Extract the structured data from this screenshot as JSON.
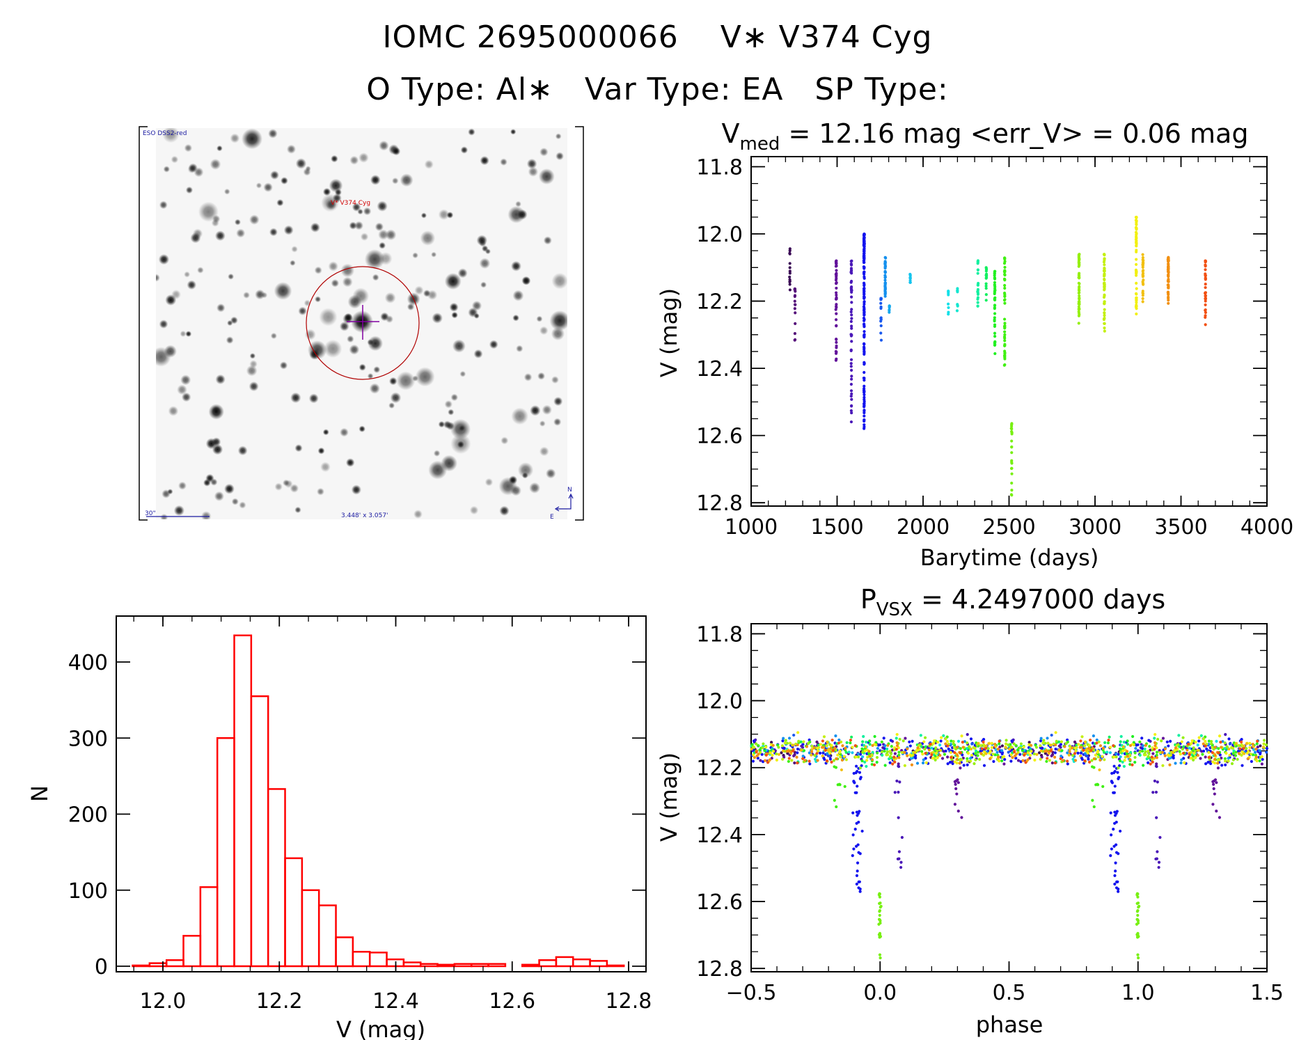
{
  "header": {
    "line1": "IOMC 2695000066    V∗ V374 Cyg",
    "line2": "O Type: Al∗   Var Type: EA   SP Type:"
  },
  "finder": {
    "survey_label": "ESO DSS2-red",
    "target_label": "V* V374 Cyg",
    "scale_label": "30\"",
    "fov_label": "3.448' x 3.057'",
    "north_label": "N",
    "east_label": "E"
  },
  "chart_data": [
    {
      "id": "lightcurve",
      "type": "scatter",
      "title_main": "V",
      "title_sub": "med",
      "title_rest": " = 12.16 mag <err_V> = 0.06 mag",
      "xlabel": "Barytime (days)",
      "ylabel": "V (mag)",
      "xlim": [
        1000,
        4000
      ],
      "ylim": [
        11.8,
        12.8
      ],
      "y_inverted": true,
      "xticks": [
        "1000",
        "1500",
        "2000",
        "2500",
        "3000",
        "3500",
        "4000"
      ],
      "yticks": [
        "11.8",
        "12.0",
        "12.2",
        "12.4",
        "12.6",
        "12.8"
      ],
      "seasons": [
        {
          "t": 1225,
          "vmin": 12.04,
          "vmax": 12.2,
          "n": 14,
          "color": "#3a0a55"
        },
        {
          "t": 1255,
          "vmin": 12.16,
          "vmax": 12.32,
          "n": 16,
          "color": "#55107a"
        },
        {
          "t": 1495,
          "vmin": 12.08,
          "vmax": 12.38,
          "n": 45,
          "color": "#62129a"
        },
        {
          "t": 1583,
          "vmin": 12.08,
          "vmax": 12.56,
          "n": 50,
          "color": "#4a18b8"
        },
        {
          "t": 1657,
          "vmin": 12.0,
          "vmax": 12.58,
          "n": 160,
          "color": "#1414ee"
        },
        {
          "t": 1755,
          "vmin": 12.19,
          "vmax": 12.32,
          "n": 14,
          "color": "#1858ee"
        },
        {
          "t": 1780,
          "vmin": 12.07,
          "vmax": 12.2,
          "n": 40,
          "color": "#1490ee"
        },
        {
          "t": 1804,
          "vmin": 12.21,
          "vmax": 12.27,
          "n": 8,
          "color": "#14a8ee"
        },
        {
          "t": 1926,
          "vmin": 12.12,
          "vmax": 12.18,
          "n": 8,
          "color": "#14c4ee"
        },
        {
          "t": 2147,
          "vmin": 12.17,
          "vmax": 12.25,
          "n": 8,
          "color": "#12e0e8"
        },
        {
          "t": 2200,
          "vmin": 12.16,
          "vmax": 12.25,
          "n": 8,
          "color": "#12e6d0"
        },
        {
          "t": 2319,
          "vmin": 12.07,
          "vmax": 12.27,
          "n": 20,
          "color": "#12f0a0"
        },
        {
          "t": 2368,
          "vmin": 12.1,
          "vmax": 12.22,
          "n": 18,
          "color": "#12f060"
        },
        {
          "t": 2417,
          "vmin": 12.11,
          "vmax": 12.36,
          "n": 40,
          "color": "#22f022"
        },
        {
          "t": 2475,
          "vmin": 12.07,
          "vmax": 12.4,
          "n": 50,
          "color": "#40f012"
        },
        {
          "t": 2515,
          "vmin": 12.56,
          "vmax": 12.78,
          "n": 25,
          "color": "#78f012",
          "dip": 0.0
        },
        {
          "t": 2907,
          "vmin": 12.06,
          "vmax": 12.27,
          "n": 60,
          "color": "#96f012"
        },
        {
          "t": 3054,
          "vmin": 12.06,
          "vmax": 12.29,
          "n": 55,
          "color": "#c4f012"
        },
        {
          "t": 3240,
          "vmin": 11.95,
          "vmax": 12.24,
          "n": 60,
          "color": "#f2f012"
        },
        {
          "t": 3279,
          "vmin": 12.06,
          "vmax": 12.21,
          "n": 30,
          "color": "#f2c012"
        },
        {
          "t": 3426,
          "vmin": 12.07,
          "vmax": 12.21,
          "n": 55,
          "color": "#f29012"
        },
        {
          "t": 3642,
          "vmin": 12.08,
          "vmax": 12.28,
          "n": 35,
          "color": "#f25012"
        }
      ]
    },
    {
      "id": "phased",
      "type": "scatter",
      "title_main": "P",
      "title_sub": "VSX",
      "title_rest": " = 4.2497000 days",
      "period_days": 4.2497,
      "xlabel": "phase",
      "ylabel": "V (mag)",
      "xlim": [
        -0.5,
        1.5
      ],
      "ylim": [
        11.8,
        12.8
      ],
      "y_inverted": true,
      "xticks": [
        "−0.5",
        "0.0",
        "0.5",
        "1.0",
        "1.5"
      ],
      "yticks": [
        "11.8",
        "12.0",
        "12.2",
        "12.4",
        "12.6",
        "12.8"
      ]
    },
    {
      "id": "histogram",
      "type": "bar",
      "xlabel": "V (mag)",
      "ylabel": "N",
      "xlim": [
        11.93,
        12.83
      ],
      "ylim": [
        0,
        460
      ],
      "xticks": [
        "12.0",
        "12.2",
        "12.4",
        "12.6",
        "12.8"
      ],
      "yticks": [
        "0",
        "100",
        "200",
        "300",
        "400"
      ],
      "bin_start": 11.948,
      "bin_width": 0.0291,
      "counts": [
        1,
        4,
        8,
        40,
        104,
        300,
        435,
        355,
        233,
        142,
        100,
        80,
        38,
        19,
        18,
        9,
        5,
        3,
        2,
        3,
        3,
        3,
        0,
        2,
        8,
        12,
        9,
        7,
        1
      ],
      "color": "#ff0000"
    }
  ]
}
